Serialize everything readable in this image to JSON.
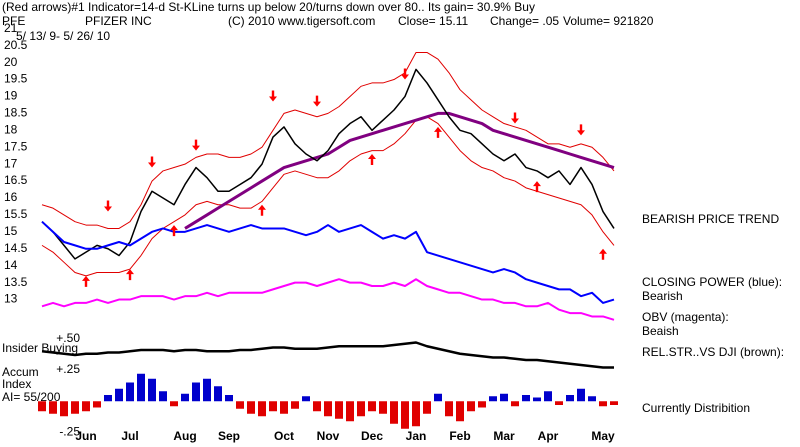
{
  "header": {
    "line1": "(Red arrows)#1 Indicator=14-d St-KLine turns up below 20/turns down over 80.. Its gain= 30.9% Buy",
    "symbol": "PFE",
    "company": "PFIZER INC",
    "copyright": "(C) 2010 www.tigersoft.com",
    "close": "Close=  15.11",
    "change": "Change= .05",
    "volume": "Volume= 921820",
    "dates": "5/ 13/ 9- 5/ 26/ 10"
  },
  "chart_data": [
    {
      "type": "line",
      "ylim": [
        12.1,
        21.2
      ],
      "yticks": [
        13,
        13.5,
        14,
        14.5,
        15,
        15.5,
        16,
        16.5,
        17,
        17.5,
        18,
        18.5,
        19,
        19.5,
        20,
        20.5,
        21
      ],
      "annotations": {
        "trend": "BEARISH PRICE TREND",
        "cp_label": "CLOSING POWER (blue):",
        "cp_state": "Bearish",
        "obv_label": "OBV (magenta):",
        "obv_state": "Beaish",
        "rs_label": "REL.STR..VS DJI (brown):"
      },
      "series": [
        {
          "type": "line",
          "color": "#e00000",
          "width": 1,
          "values": [
            15.8,
            15.7,
            15.5,
            15.3,
            15.2,
            15.2,
            15.1,
            15.1,
            15.3,
            15.8,
            16.5,
            16.8,
            16.9,
            17.0,
            17.2,
            17.3,
            17.3,
            17.2,
            17.2,
            17.3,
            17.5,
            18.0,
            18.5,
            18.6,
            18.5,
            18.4,
            18.5,
            18.7,
            19.0,
            19.3,
            19.4,
            19.4,
            19.5,
            19.7,
            20.3,
            20.3,
            20.1,
            19.7,
            19.2,
            18.9,
            18.6,
            18.4,
            18.2,
            18.1,
            18.0,
            17.8,
            17.6,
            17.6,
            17.5,
            17.6,
            17.5,
            17.2,
            16.8
          ]
        },
        {
          "type": "line",
          "color": "#e00000",
          "width": 1,
          "values": [
            14.6,
            14.4,
            14.1,
            13.8,
            13.7,
            13.8,
            13.8,
            13.8,
            13.9,
            14.3,
            14.8,
            15.1,
            15.3,
            15.5,
            15.8,
            15.9,
            15.8,
            15.8,
            15.7,
            15.7,
            15.9,
            16.3,
            16.7,
            16.8,
            16.7,
            16.6,
            16.6,
            16.8,
            17.1,
            17.3,
            17.4,
            17.4,
            17.6,
            17.9,
            18.3,
            18.4,
            18.2,
            17.8,
            17.4,
            17.1,
            16.9,
            16.8,
            16.6,
            16.5,
            16.3,
            16.2,
            16.1,
            16.0,
            15.9,
            15.8,
            15.5,
            15.0,
            14.6
          ]
        },
        {
          "type": "line",
          "color": "#800080",
          "width": 3,
          "values": [
            null,
            null,
            null,
            null,
            null,
            null,
            null,
            null,
            null,
            null,
            null,
            null,
            null,
            15.1,
            15.3,
            15.5,
            15.7,
            15.9,
            16.1,
            16.3,
            16.5,
            16.7,
            16.9,
            17.0,
            17.1,
            17.2,
            17.3,
            17.5,
            17.7,
            17.8,
            17.9,
            18.0,
            18.1,
            18.2,
            18.3,
            18.4,
            18.5,
            18.5,
            18.4,
            18.3,
            18.2,
            18.0,
            17.9,
            17.8,
            17.7,
            17.6,
            17.5,
            17.4,
            17.3,
            17.2,
            17.1,
            17.0,
            16.9
          ]
        },
        {
          "type": "line",
          "color": "#000000",
          "width": 1.5,
          "values": [
            15.3,
            15.0,
            14.6,
            14.2,
            14.4,
            14.6,
            14.5,
            14.3,
            14.7,
            15.6,
            16.2,
            16.0,
            15.8,
            16.4,
            16.9,
            16.6,
            16.2,
            16.2,
            16.4,
            16.6,
            17.0,
            17.8,
            18.1,
            17.6,
            17.3,
            17.1,
            17.4,
            17.9,
            18.2,
            18.4,
            18.0,
            18.3,
            18.6,
            19.0,
            19.8,
            19.4,
            18.9,
            18.4,
            18.0,
            17.9,
            17.6,
            17.3,
            17.1,
            17.3,
            16.9,
            16.8,
            16.6,
            16.8,
            16.4,
            16.9,
            16.4,
            15.6,
            15.1
          ]
        },
        {
          "type": "line",
          "color": "#0000ff",
          "width": 2,
          "values": [
            15.3,
            15.0,
            14.7,
            14.6,
            14.5,
            14.5,
            14.6,
            14.7,
            14.6,
            14.8,
            15.0,
            15.1,
            15.0,
            15.0,
            15.1,
            15.2,
            15.1,
            15.0,
            15.1,
            15.2,
            15.1,
            15.1,
            15.1,
            15.0,
            14.9,
            15.0,
            15.2,
            15.0,
            15.1,
            15.2,
            15.0,
            14.8,
            14.9,
            14.8,
            15.0,
            14.4,
            14.3,
            14.2,
            14.1,
            14.0,
            13.9,
            13.8,
            13.9,
            13.8,
            13.6,
            13.5,
            13.4,
            13.3,
            13.3,
            13.1,
            13.2,
            12.9,
            13.0
          ]
        },
        {
          "type": "line",
          "color": "#ff00ff",
          "width": 2,
          "values": [
            12.8,
            12.9,
            12.8,
            12.9,
            12.9,
            13.0,
            12.9,
            13.0,
            13.0,
            13.1,
            13.1,
            13.1,
            13.0,
            13.1,
            13.1,
            13.2,
            13.1,
            13.2,
            13.2,
            13.2,
            13.2,
            13.3,
            13.4,
            13.5,
            13.5,
            13.4,
            13.5,
            13.6,
            13.5,
            13.5,
            13.4,
            13.4,
            13.5,
            13.4,
            13.6,
            13.4,
            13.3,
            13.2,
            13.2,
            13.1,
            13.0,
            13.0,
            12.9,
            12.9,
            12.8,
            12.8,
            12.9,
            12.7,
            12.6,
            12.6,
            12.5,
            12.5,
            12.4
          ]
        },
        {
          "type": "marker",
          "direction": "down",
          "color": "#ff0000",
          "values": [
            null,
            null,
            null,
            null,
            null,
            null,
            15.6,
            null,
            null,
            null,
            16.9,
            null,
            null,
            null,
            17.4,
            null,
            null,
            null,
            null,
            null,
            null,
            18.85,
            null,
            null,
            null,
            18.7,
            null,
            null,
            null,
            null,
            null,
            null,
            null,
            19.5,
            null,
            null,
            null,
            null,
            null,
            null,
            null,
            null,
            null,
            18.2,
            null,
            null,
            null,
            null,
            null,
            17.85,
            null,
            null,
            null
          ]
        },
        {
          "type": "marker",
          "direction": "up",
          "color": "#ff0000",
          "values": [
            null,
            null,
            null,
            null,
            13.7,
            null,
            null,
            null,
            13.9,
            null,
            null,
            null,
            15.2,
            null,
            null,
            null,
            null,
            null,
            null,
            null,
            15.8,
            null,
            null,
            null,
            null,
            null,
            null,
            null,
            null,
            null,
            17.3,
            null,
            null,
            null,
            null,
            null,
            18.1,
            null,
            null,
            null,
            null,
            null,
            null,
            null,
            null,
            16.5,
            null,
            null,
            null,
            null,
            null,
            14.5,
            null
          ]
        }
      ]
    },
    {
      "type": "line",
      "ylim": [
        -0.31,
        0.57
      ],
      "yticks": [
        {
          "value": 0.5,
          "label": "+.50"
        },
        {
          "value": 0.25,
          "label": "+.25"
        },
        {
          "value": -0.25,
          "label": "-.25"
        }
      ],
      "annotations": {
        "insider": "Insider Buying",
        "accum": "Accum",
        "index": "Index",
        "ai": "AI= 55/200",
        "status": "Currently Distribition"
      },
      "categories": [
        null,
        null,
        null,
        null,
        "Jun",
        null,
        null,
        null,
        "Jul",
        null,
        null,
        null,
        null,
        "Aug",
        null,
        null,
        null,
        "Sep",
        null,
        null,
        null,
        null,
        "Oct",
        null,
        null,
        null,
        "Nov",
        null,
        null,
        null,
        "Dec",
        null,
        null,
        null,
        "Jan",
        null,
        null,
        null,
        "Feb",
        null,
        null,
        null,
        "Mar",
        null,
        null,
        null,
        "Apr",
        null,
        null,
        null,
        null,
        "May",
        null
      ],
      "series": [
        {
          "type": "bar",
          "color": "#0000cc",
          "negative_color": "#e00000",
          "values": [
            -0.08,
            -0.1,
            -0.12,
            -0.1,
            -0.08,
            -0.05,
            0.05,
            0.1,
            0.15,
            0.22,
            0.18,
            0.08,
            -0.04,
            0.06,
            0.15,
            0.18,
            0.12,
            0.05,
            -0.06,
            -0.1,
            -0.12,
            -0.08,
            -0.1,
            -0.06,
            0.04,
            -0.08,
            -0.12,
            -0.14,
            -0.16,
            -0.12,
            -0.08,
            -0.1,
            -0.18,
            -0.22,
            -0.2,
            -0.1,
            0.06,
            -0.12,
            -0.16,
            -0.08,
            -0.05,
            0.04,
            0.06,
            -0.04,
            0.05,
            0.03,
            0.08,
            -0.03,
            0.05,
            0.1,
            0.04,
            -0.04,
            -0.03
          ]
        },
        {
          "type": "line",
          "color": "#000000",
          "width": 2.5,
          "values": [
            0.4,
            0.39,
            0.38,
            0.37,
            0.38,
            0.38,
            0.39,
            0.39,
            0.4,
            0.41,
            0.41,
            0.41,
            0.4,
            0.41,
            0.41,
            0.4,
            0.4,
            0.4,
            0.41,
            0.41,
            0.42,
            0.43,
            0.43,
            0.42,
            0.42,
            0.42,
            0.43,
            0.44,
            0.44,
            0.44,
            0.44,
            0.44,
            0.45,
            0.46,
            0.47,
            0.44,
            0.42,
            0.4,
            0.38,
            0.37,
            0.36,
            0.35,
            0.35,
            0.34,
            0.33,
            0.33,
            0.32,
            0.31,
            0.3,
            0.29,
            0.28,
            0.27,
            0.27
          ]
        }
      ]
    }
  ]
}
